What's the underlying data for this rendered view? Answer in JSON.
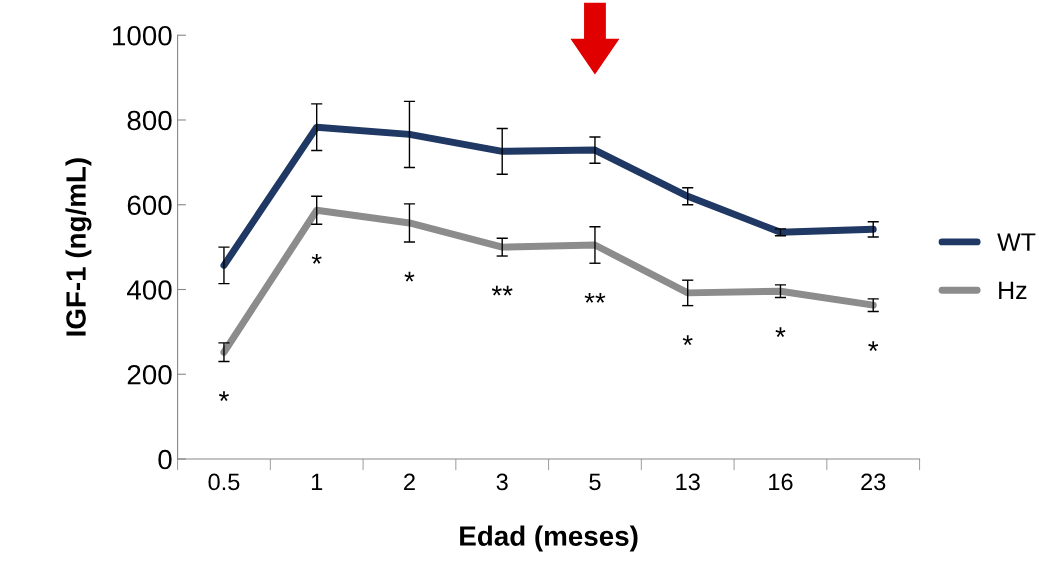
{
  "chart_data": {
    "type": "line",
    "xlabel": "Edad (meses)",
    "ylabel": "IGF-1 (ng/mL)",
    "categories": [
      "0.5",
      "1",
      "2",
      "3",
      "5",
      "13",
      "16",
      "23"
    ],
    "series": [
      {
        "name": "WT",
        "color": "#203864",
        "values": [
          457,
          783,
          766,
          726,
          729,
          620,
          535,
          542
        ],
        "errors": [
          43,
          55,
          78,
          54,
          31,
          20,
          8,
          18
        ]
      },
      {
        "name": "Hz",
        "color": "#8c8c8c",
        "values": [
          252,
          587,
          557,
          500,
          505,
          392,
          396,
          363
        ],
        "errors": [
          22,
          33,
          45,
          21,
          43,
          30,
          15,
          15
        ]
      }
    ],
    "ylim": [
      0,
      1000
    ],
    "yticks": [
      0,
      200,
      400,
      600,
      800,
      1000
    ],
    "grid": false,
    "legend": "right",
    "marker": "none",
    "line_style": "solid",
    "annotations": [
      "*",
      "*",
      "*",
      "**",
      "**",
      "*",
      "*",
      "*"
    ]
  }
}
